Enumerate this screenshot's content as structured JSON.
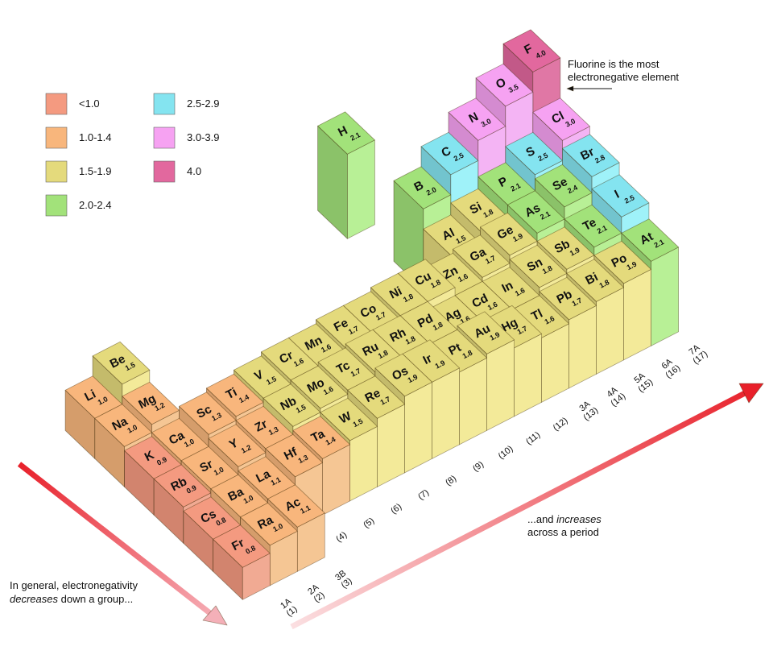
{
  "legend": [
    {
      "label": "<1.0",
      "color": "#f49a80"
    },
    {
      "label": "1.0-1.4",
      "color": "#f8b67c"
    },
    {
      "label": "1.5-1.9",
      "color": "#e4da7c"
    },
    {
      "label": "2.0-2.4",
      "color": "#a2e27a"
    },
    {
      "label": "2.5-2.9",
      "color": "#84e4f0"
    },
    {
      "label": "3.0-3.9",
      "color": "#f6a2f2"
    },
    {
      "label": "4.0",
      "color": "#e2689e"
    }
  ],
  "periods": [
    [
      {
        "symbol": "H",
        "value": 2.1,
        "color": "#a2e27a"
      },
      null,
      null,
      null,
      null,
      null,
      null,
      null,
      null,
      null,
      null,
      null,
      null,
      null,
      null,
      null,
      null
    ],
    [
      {
        "symbol": "Li",
        "value": 1.0,
        "value_label": "1.0",
        "color": "#f8b67c"
      },
      {
        "symbol": "Be",
        "value": 1.5,
        "color": "#e4da7c"
      },
      null,
      null,
      null,
      null,
      null,
      null,
      null,
      null,
      null,
      null,
      {
        "symbol": "B",
        "value": 2.0,
        "value_label": "2.0",
        "color": "#a2e27a"
      },
      {
        "symbol": "C",
        "value": 2.5,
        "color": "#84e4f0"
      },
      {
        "symbol": "N",
        "value": 3.0,
        "value_label": "3.0",
        "color": "#f6a2f2"
      },
      {
        "symbol": "O",
        "value": 3.5,
        "color": "#f6a2f2"
      },
      {
        "symbol": "F",
        "value": 4.0,
        "value_label": "4.0",
        "color": "#e2689e"
      }
    ],
    [
      {
        "symbol": "Na",
        "value": 1.0,
        "value_label": "1.0",
        "color": "#f8b67c"
      },
      {
        "symbol": "Mg",
        "value": 1.2,
        "color": "#f8b67c"
      },
      null,
      null,
      null,
      null,
      null,
      null,
      null,
      null,
      null,
      null,
      {
        "symbol": "Al",
        "value": 1.5,
        "color": "#e4da7c"
      },
      {
        "symbol": "Si",
        "value": 1.8,
        "color": "#e4da7c"
      },
      {
        "symbol": "P",
        "value": 2.1,
        "color": "#a2e27a"
      },
      {
        "symbol": "S",
        "value": 2.5,
        "color": "#84e4f0"
      },
      {
        "symbol": "Cl",
        "value": 3.0,
        "value_label": "3.0",
        "color": "#f6a2f2"
      }
    ],
    [
      {
        "symbol": "K",
        "value": 0.9,
        "color": "#f49a80"
      },
      {
        "symbol": "Ca",
        "value": 1.0,
        "value_label": "1.0",
        "color": "#f8b67c"
      },
      {
        "symbol": "Sc",
        "value": 1.3,
        "color": "#f8b67c"
      },
      {
        "symbol": "Ti",
        "value": 1.4,
        "color": "#f8b67c"
      },
      {
        "symbol": "V",
        "value": 1.5,
        "color": "#e4da7c"
      },
      {
        "symbol": "Cr",
        "value": 1.6,
        "color": "#e4da7c"
      },
      {
        "symbol": "Mn",
        "value": 1.6,
        "color": "#e4da7c"
      },
      {
        "symbol": "Fe",
        "value": 1.7,
        "color": "#e4da7c"
      },
      {
        "symbol": "Co",
        "value": 1.7,
        "color": "#e4da7c"
      },
      {
        "symbol": "Ni",
        "value": 1.8,
        "color": "#e4da7c"
      },
      {
        "symbol": "Cu",
        "value": 1.8,
        "color": "#e4da7c"
      },
      {
        "symbol": "Zn",
        "value": 1.6,
        "color": "#e4da7c"
      },
      {
        "symbol": "Ga",
        "value": 1.7,
        "color": "#e4da7c"
      },
      {
        "symbol": "Ge",
        "value": 1.9,
        "color": "#e4da7c"
      },
      {
        "symbol": "As",
        "value": 2.1,
        "color": "#a2e27a"
      },
      {
        "symbol": "Se",
        "value": 2.4,
        "color": "#a2e27a"
      },
      {
        "symbol": "Br",
        "value": 2.8,
        "color": "#84e4f0"
      }
    ],
    [
      {
        "symbol": "Rb",
        "value": 0.9,
        "color": "#f49a80"
      },
      {
        "symbol": "Sr",
        "value": 1.0,
        "value_label": "1.0",
        "color": "#f8b67c"
      },
      {
        "symbol": "Y",
        "value": 1.2,
        "color": "#f8b67c"
      },
      {
        "symbol": "Zr",
        "value": 1.3,
        "color": "#f8b67c"
      },
      {
        "symbol": "Nb",
        "value": 1.5,
        "color": "#e4da7c"
      },
      {
        "symbol": "Mo",
        "value": 1.6,
        "color": "#e4da7c"
      },
      {
        "symbol": "Tc",
        "value": 1.7,
        "color": "#e4da7c"
      },
      {
        "symbol": "Ru",
        "value": 1.8,
        "color": "#e4da7c"
      },
      {
        "symbol": "Rh",
        "value": 1.8,
        "color": "#e4da7c"
      },
      {
        "symbol": "Pd",
        "value": 1.8,
        "color": "#e4da7c"
      },
      {
        "symbol": "Ag",
        "value": 1.6,
        "color": "#e4da7c"
      },
      {
        "symbol": "Cd",
        "value": 1.6,
        "color": "#e4da7c"
      },
      {
        "symbol": "In",
        "value": 1.6,
        "color": "#e4da7c"
      },
      {
        "symbol": "Sn",
        "value": 1.8,
        "color": "#e4da7c"
      },
      {
        "symbol": "Sb",
        "value": 1.9,
        "color": "#e4da7c"
      },
      {
        "symbol": "Te",
        "value": 2.1,
        "color": "#a2e27a"
      },
      {
        "symbol": "I",
        "value": 2.5,
        "color": "#84e4f0"
      }
    ],
    [
      {
        "symbol": "Cs",
        "value": 0.8,
        "color": "#f49a80"
      },
      {
        "symbol": "Ba",
        "value": 1.0,
        "value_label": "1.0",
        "color": "#f8b67c"
      },
      {
        "symbol": "La",
        "value": 1.1,
        "color": "#f8b67c"
      },
      {
        "symbol": "Hf",
        "value": 1.3,
        "color": "#f8b67c"
      },
      {
        "symbol": "Ta",
        "value": 1.4,
        "color": "#f8b67c"
      },
      {
        "symbol": "W",
        "value": 1.5,
        "color": "#e4da7c"
      },
      {
        "symbol": "Re",
        "value": 1.7,
        "color": "#e4da7c"
      },
      {
        "symbol": "Os",
        "value": 1.9,
        "color": "#e4da7c"
      },
      {
        "symbol": "Ir",
        "value": 1.9,
        "color": "#e4da7c"
      },
      {
        "symbol": "Pt",
        "value": 1.8,
        "color": "#e4da7c"
      },
      {
        "symbol": "Au",
        "value": 1.9,
        "color": "#e4da7c"
      },
      {
        "symbol": "Hg",
        "value": 1.7,
        "color": "#e4da7c"
      },
      {
        "symbol": "Tl",
        "value": 1.6,
        "color": "#e4da7c"
      },
      {
        "symbol": "Pb",
        "value": 1.7,
        "color": "#e4da7c"
      },
      {
        "symbol": "Bi",
        "value": 1.8,
        "color": "#e4da7c"
      },
      {
        "symbol": "Po",
        "value": 1.9,
        "color": "#e4da7c"
      },
      {
        "symbol": "At",
        "value": 2.1,
        "color": "#a2e27a"
      }
    ],
    [
      {
        "symbol": "Fr",
        "value": 0.8,
        "color": "#f49a80"
      },
      {
        "symbol": "Ra",
        "value": 1.0,
        "value_label": "1.0",
        "color": "#f8b67c"
      },
      {
        "symbol": "Ac",
        "value": 1.1,
        "color": "#f8b67c"
      },
      null,
      null,
      null,
      null,
      null,
      null,
      null,
      null,
      null,
      null,
      null,
      null,
      null,
      null
    ]
  ],
  "group_labels": [
    {
      "lines": [
        "1A",
        "(1)"
      ]
    },
    {
      "lines": [
        "2A",
        "(2)"
      ]
    },
    {
      "lines": [
        "3B",
        "(3)"
      ]
    },
    {
      "lines": [
        "(4)"
      ]
    },
    {
      "lines": [
        "(5)"
      ]
    },
    {
      "lines": [
        "(6)"
      ]
    },
    {
      "lines": [
        "(7)"
      ]
    },
    {
      "lines": [
        "(8)"
      ]
    },
    {
      "lines": [
        "(9)"
      ]
    },
    {
      "lines": [
        "(10)"
      ]
    },
    {
      "lines": [
        "(11)"
      ]
    },
    {
      "lines": [
        "(12)"
      ]
    },
    {
      "lines": [
        "3A",
        "(13)"
      ]
    },
    {
      "lines": [
        "4A",
        "(14)"
      ]
    },
    {
      "lines": [
        "5A",
        "(15)"
      ]
    },
    {
      "lines": [
        "6A",
        "(16)"
      ]
    },
    {
      "lines": [
        "7A",
        "(17)"
      ]
    }
  ],
  "fluorine_note": [
    "Fluorine is the most",
    "electronegative element"
  ],
  "down_note": {
    "line1": "In general, electronegativity",
    "emph": "decreases",
    "rest": "down a group..."
  },
  "across_note": {
    "lead": "...and",
    "emph": "increases",
    "line2": "across a period"
  }
}
